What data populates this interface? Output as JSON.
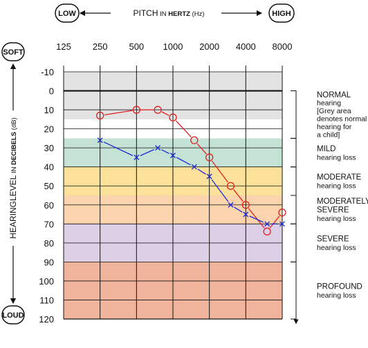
{
  "header": {
    "pitch_word": "PITCH",
    "pitch_in": " IN ",
    "pitch_unit": "HERTZ",
    "pitch_hz": " (Hz)",
    "low": "LOW",
    "high": "HIGH"
  },
  "side": {
    "soft": "SOFT",
    "loud": "LOUD",
    "title_main": "HEARINGLEVEL",
    "title_in": " IN ",
    "title_unit": "DECIBELS",
    "title_db": " (dB)"
  },
  "chart_data": {
    "type": "line",
    "x_ticks": [
      "125",
      "250",
      "500",
      "1000",
      "2000",
      "4000",
      "8000"
    ],
    "y_ticks": [
      "-10",
      "0",
      "10",
      "20",
      "30",
      "40",
      "50",
      "60",
      "70",
      "80",
      "90",
      "100",
      "110",
      "120"
    ],
    "x_scale": "log2",
    "xlim": [
      125,
      8000
    ],
    "ylim": [
      -10,
      120
    ],
    "y_reversed": true,
    "grid": true,
    "series": [
      {
        "marker": "circle",
        "color": "#e02020",
        "points": [
          {
            "x": 250,
            "y": 13
          },
          {
            "x": 500,
            "y": 10
          },
          {
            "x": 750,
            "y": 10
          },
          {
            "x": 1000,
            "y": 14
          },
          {
            "x": 1500,
            "y": 26
          },
          {
            "x": 2000,
            "y": 35
          },
          {
            "x": 3000,
            "y": 50
          },
          {
            "x": 4000,
            "y": 60
          },
          {
            "x": 6000,
            "y": 74
          },
          {
            "x": 8000,
            "y": 64
          }
        ]
      },
      {
        "marker": "cross",
        "color": "#1a2bd8",
        "points": [
          {
            "x": 250,
            "y": 26
          },
          {
            "x": 500,
            "y": 35
          },
          {
            "x": 750,
            "y": 30
          },
          {
            "x": 1000,
            "y": 34
          },
          {
            "x": 1500,
            "y": 40
          },
          {
            "x": 2000,
            "y": 45
          },
          {
            "x": 3000,
            "y": 60
          },
          {
            "x": 4000,
            "y": 65
          },
          {
            "x": 6000,
            "y": 70
          },
          {
            "x": 8000,
            "y": 70
          }
        ]
      }
    ],
    "bands": [
      {
        "from": -10,
        "to": 15,
        "color": "#e3e3e3"
      },
      {
        "from": 25,
        "to": 40,
        "color": "#c5e3d5"
      },
      {
        "from": 40,
        "to": 55,
        "color": "#fbe19a"
      },
      {
        "from": 55,
        "to": 70,
        "color": "#fbd3ad"
      },
      {
        "from": 70,
        "to": 90,
        "color": "#ddcfe6"
      },
      {
        "from": 90,
        "to": 120,
        "color": "#f0b49c"
      }
    ],
    "annotations": [
      {
        "from": 0,
        "to": 25,
        "lines": [
          "NORMAL",
          "hearing",
          "[Grey area",
          "denotes normal",
          "hearing for",
          "a child]"
        ]
      },
      {
        "from": 25,
        "to": 40,
        "lines": [
          "MILD",
          "hearing loss"
        ]
      },
      {
        "from": 40,
        "to": 55,
        "lines": [
          "MODERATE",
          "hearing loss"
        ]
      },
      {
        "from": 55,
        "to": 70,
        "lines": [
          "MODERATELY",
          "SEVERE",
          "hearing loss"
        ]
      },
      {
        "from": 70,
        "to": 90,
        "lines": [
          "SEVERE",
          "hearing loss"
        ]
      },
      {
        "from": 90,
        "to": 120,
        "lines": [
          "PROFOUND",
          "hearing loss"
        ]
      }
    ]
  }
}
